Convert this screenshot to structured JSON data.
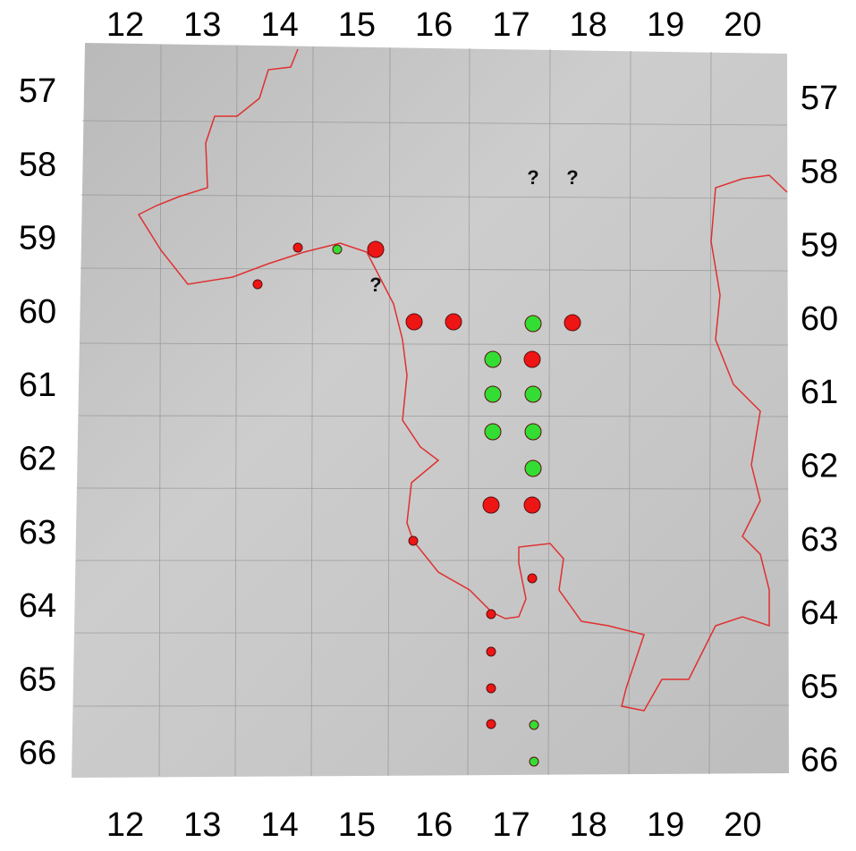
{
  "grid": {
    "columns": [
      "12",
      "13",
      "14",
      "15",
      "16",
      "17",
      "18",
      "19",
      "20"
    ],
    "rows": [
      "57",
      "58",
      "59",
      "60",
      "61",
      "62",
      "63",
      "64",
      "65",
      "66"
    ]
  },
  "annotations": [
    "?",
    "?",
    "?"
  ]
}
